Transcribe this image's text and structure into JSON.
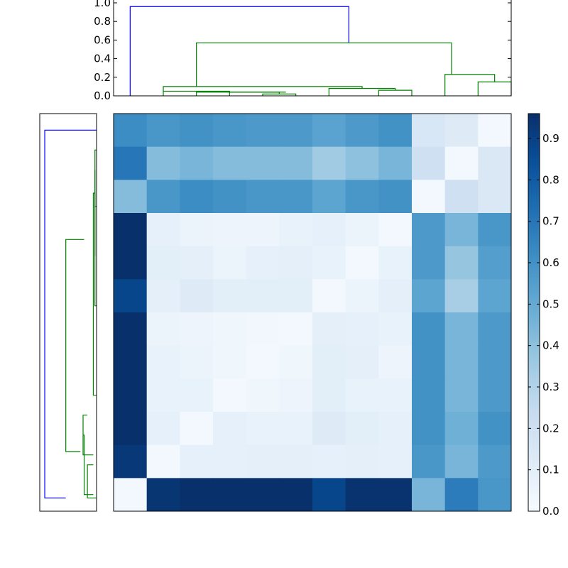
{
  "chart_data": [
    {
      "type": "dendrogram",
      "orientation": "top",
      "ylim": [
        0,
        1.0
      ],
      "yticks": [
        "0.0",
        "0.2",
        "0.4",
        "0.6",
        "0.8",
        "1.0"
      ],
      "colors": {
        "root_link": "#0000ff",
        "cluster_link": "#008000"
      },
      "links": [
        {
          "x": [
            0.5,
            0.5,
            7.1,
            7.1
          ],
          "y": [
            0,
            0.96,
            0.96,
            0.57
          ],
          "color": "root_link"
        },
        {
          "x": [
            2.5,
            2.5,
            10.2,
            10.2
          ],
          "y": [
            0.1,
            0.57,
            0.57,
            0.23
          ],
          "color": "cluster_link"
        },
        {
          "x": [
            10.0,
            10.0,
            11.5,
            11.5
          ],
          "y": [
            0,
            0.23,
            0.23,
            0.15
          ],
          "color": "cluster_link"
        },
        {
          "x": [
            11.0,
            11.0,
            12.0,
            12.0
          ],
          "y": [
            0,
            0.15,
            0.15,
            0
          ],
          "color": "cluster_link"
        },
        {
          "x": [
            1.5,
            1.5,
            7.5,
            7.5
          ],
          "y": [
            0.05,
            0.1,
            0.1,
            0.08
          ],
          "color": "cluster_link"
        },
        {
          "x": [
            1.5,
            1.5,
            3.5,
            3.5
          ],
          "y": [
            0,
            0.05,
            0.05,
            0.04
          ],
          "color": "cluster_link"
        },
        {
          "x": [
            2.5,
            2.5,
            5.2,
            5.2
          ],
          "y": [
            0,
            0.04,
            0.04,
            0.04
          ],
          "color": "cluster_link"
        },
        {
          "x": [
            3.5,
            3.5,
            5.0,
            5.0
          ],
          "y": [
            0,
            0.04,
            0.04,
            0.02
          ],
          "color": "cluster_link"
        },
        {
          "x": [
            4.5,
            4.5,
            5.5,
            5.5
          ],
          "y": [
            0,
            0.02,
            0.02,
            0
          ],
          "color": "cluster_link"
        },
        {
          "x": [
            6.5,
            6.5,
            8.5,
            8.5
          ],
          "y": [
            0,
            0.08,
            0.08,
            0.06
          ],
          "color": "cluster_link"
        },
        {
          "x": [
            8.0,
            8.0,
            9.0,
            9.0
          ],
          "y": [
            0,
            0.06,
            0.06,
            0
          ],
          "color": "cluster_link"
        }
      ]
    },
    {
      "type": "dendrogram",
      "orientation": "left",
      "colors": {
        "root_link": "#0000ff",
        "cluster_link": "#008000"
      },
      "links": [
        {
          "y": [
            0.5,
            0.5,
            11.6,
            11.6
          ],
          "x": [
            0,
            0.96,
            0.96,
            0.57
          ],
          "color": "root_link"
        },
        {
          "y": [
            10.2,
            10.2,
            3.8,
            3.8
          ],
          "x": [
            0.3,
            0.57,
            0.57,
            0.23
          ],
          "color": "cluster_link"
        },
        {
          "y": [
            11.5,
            11.5,
            9.7,
            9.7
          ],
          "x": [
            0.06,
            0.23,
            0.23,
            0.25
          ],
          "color": "cluster_link"
        },
        {
          "y": [
            10.3,
            10.3,
            9.1,
            9.1
          ],
          "x": [
            0.06,
            0.25,
            0.25,
            0.17
          ],
          "color": "cluster_link"
        },
        {
          "y": [
            11.6,
            11.6,
            10.6,
            10.6
          ],
          "x": [
            0,
            0.17,
            0.17,
            0.06
          ],
          "color": "cluster_link"
        },
        {
          "y": [
            8.5,
            8.5,
            2.4,
            2.4
          ],
          "x": [
            0,
            0.06,
            0.06,
            0.03
          ],
          "color": "cluster_link"
        },
        {
          "y": [
            5.8,
            5.8,
            2.4,
            2.4
          ],
          "x": [
            0,
            0.03,
            0.03,
            0.03
          ],
          "color": "cluster_link"
        },
        {
          "y": [
            4.3,
            4.3,
            1.7,
            1.7
          ],
          "x": [
            0.03,
            0.03,
            0.03,
            0.03
          ],
          "color": "cluster_link"
        },
        {
          "y": [
            2.8,
            2.8,
            1.1,
            1.1
          ],
          "x": [
            0,
            0.03,
            0.03,
            0
          ],
          "color": "cluster_link"
        }
      ]
    },
    {
      "type": "heatmap",
      "colormap": "Blues",
      "vmin": 0,
      "vmax": 0.96,
      "rows": 12,
      "cols": 12,
      "values": [
        [
          0.62,
          0.58,
          0.6,
          0.58,
          0.57,
          0.57,
          0.53,
          0.57,
          0.6,
          0.15,
          0.12,
          0.02
        ],
        [
          0.7,
          0.42,
          0.45,
          0.42,
          0.42,
          0.42,
          0.35,
          0.4,
          0.45,
          0.2,
          0.02,
          0.14
        ],
        [
          0.42,
          0.58,
          0.62,
          0.6,
          0.58,
          0.58,
          0.52,
          0.58,
          0.6,
          0.02,
          0.2,
          0.14
        ],
        [
          0.96,
          0.08,
          0.06,
          0.05,
          0.05,
          0.07,
          0.08,
          0.06,
          0.02,
          0.57,
          0.45,
          0.58
        ],
        [
          0.96,
          0.1,
          0.09,
          0.06,
          0.08,
          0.09,
          0.07,
          0.02,
          0.07,
          0.57,
          0.38,
          0.55
        ],
        [
          0.88,
          0.09,
          0.12,
          0.1,
          0.1,
          0.1,
          0.02,
          0.06,
          0.09,
          0.52,
          0.33,
          0.52
        ],
        [
          0.96,
          0.06,
          0.05,
          0.04,
          0.03,
          0.02,
          0.09,
          0.08,
          0.07,
          0.6,
          0.45,
          0.57
        ],
        [
          0.96,
          0.07,
          0.06,
          0.04,
          0.02,
          0.04,
          0.1,
          0.09,
          0.05,
          0.6,
          0.45,
          0.57
        ],
        [
          0.96,
          0.07,
          0.07,
          0.02,
          0.04,
          0.05,
          0.1,
          0.07,
          0.07,
          0.6,
          0.45,
          0.57
        ],
        [
          0.96,
          0.08,
          0.02,
          0.08,
          0.07,
          0.07,
          0.12,
          0.1,
          0.08,
          0.6,
          0.47,
          0.6
        ],
        [
          0.93,
          0.02,
          0.08,
          0.08,
          0.09,
          0.09,
          0.08,
          0.09,
          0.08,
          0.58,
          0.45,
          0.57
        ],
        [
          0.02,
          0.94,
          0.96,
          0.96,
          0.96,
          0.96,
          0.88,
          0.95,
          0.95,
          0.45,
          0.68,
          0.58
        ]
      ],
      "colorbar": {
        "ticks": [
          "0.0",
          "0.1",
          "0.2",
          "0.3",
          "0.4",
          "0.5",
          "0.6",
          "0.7",
          "0.8",
          "0.9"
        ],
        "tick_values": [
          0,
          0.1,
          0.2,
          0.3,
          0.4,
          0.5,
          0.6,
          0.7,
          0.8,
          0.9
        ]
      }
    }
  ]
}
